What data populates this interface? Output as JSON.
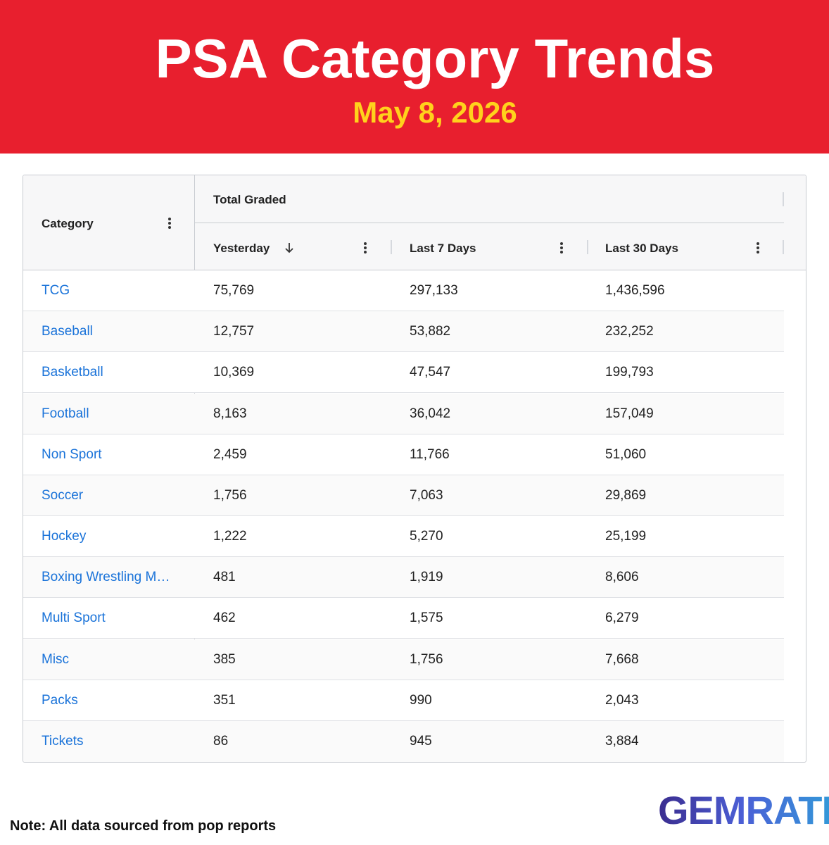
{
  "header": {
    "title": "PSA Category Trends",
    "date": "May 8, 2026"
  },
  "table": {
    "group_header": "Total Graded",
    "columns": [
      "Category",
      "Yesterday",
      "Last 7 Days",
      "Last 30 Days"
    ],
    "rows": [
      [
        "TCG",
        "75,769",
        "297,133",
        "1,436,596"
      ],
      [
        "Baseball",
        "12,757",
        "53,882",
        "232,252"
      ],
      [
        "Basketball",
        "10,369",
        "47,547",
        "199,793"
      ],
      [
        "Football",
        "8,163",
        "36,042",
        "157,049"
      ],
      [
        "Non Sport",
        "2,459",
        "11,766",
        "51,060"
      ],
      [
        "Soccer",
        "1,756",
        "7,063",
        "29,869"
      ],
      [
        "Hockey",
        "1,222",
        "5,270",
        "25,199"
      ],
      [
        "Boxing Wrestling M…",
        "481",
        "1,919",
        "8,606"
      ],
      [
        "Multi Sport",
        "462",
        "1,575",
        "6,279"
      ],
      [
        "Misc",
        "385",
        "1,756",
        "7,668"
      ],
      [
        "Packs",
        "351",
        "990",
        "2,043"
      ],
      [
        "Tickets",
        "86",
        "945",
        "3,884"
      ]
    ]
  },
  "footer": {
    "note": "Note: All data sourced from pop reports",
    "logo": "GEMRATE"
  }
}
